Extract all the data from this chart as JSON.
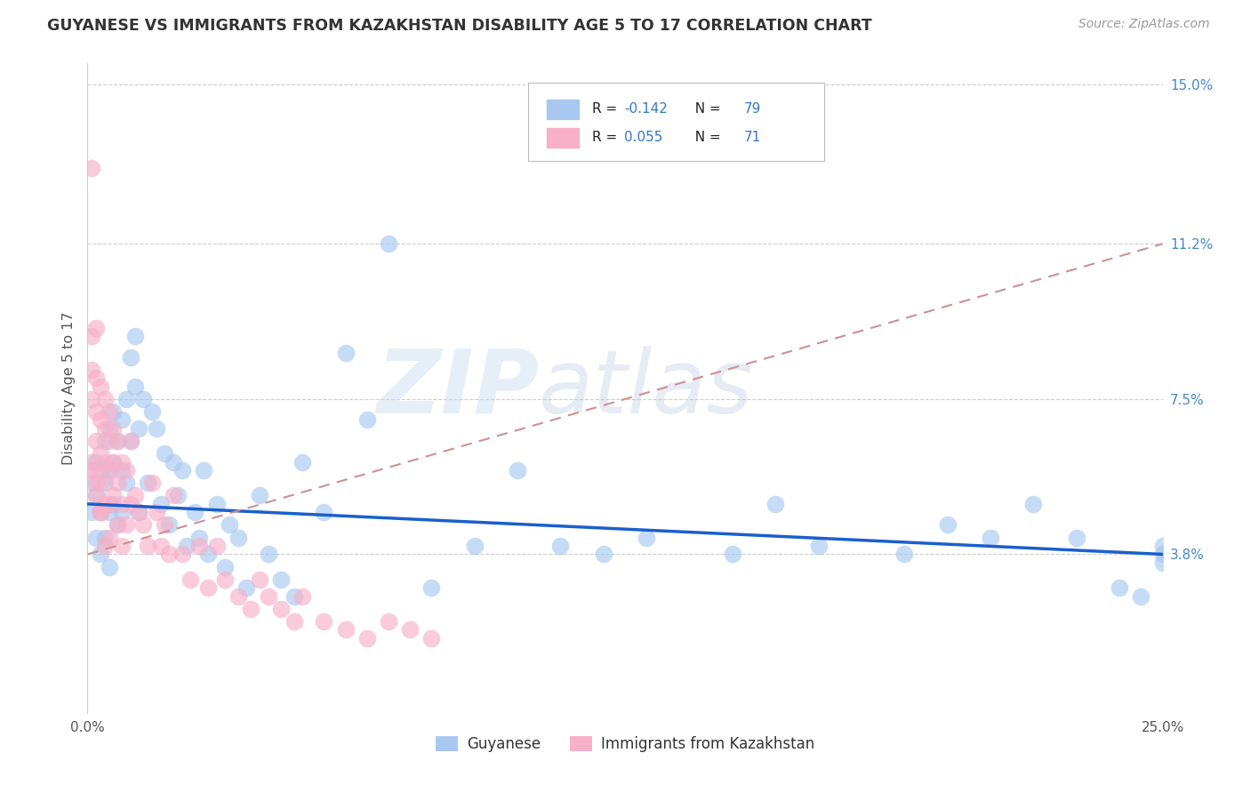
{
  "title": "GUYANESE VS IMMIGRANTS FROM KAZAKHSTAN DISABILITY AGE 5 TO 17 CORRELATION CHART",
  "source": "Source: ZipAtlas.com",
  "ylabel": "Disability Age 5 to 17",
  "xlim": [
    0.0,
    0.25
  ],
  "ylim": [
    0.0,
    0.155
  ],
  "xticks": [
    0.0,
    0.05,
    0.1,
    0.15,
    0.2,
    0.25
  ],
  "xticklabels": [
    "0.0%",
    "",
    "",
    "",
    "",
    "25.0%"
  ],
  "ytick_positions": [
    0.038,
    0.075,
    0.112,
    0.15
  ],
  "ytick_labels": [
    "3.8%",
    "7.5%",
    "11.2%",
    "15.0%"
  ],
  "R_blue": -0.142,
  "N_blue": 79,
  "R_pink": 0.055,
  "N_pink": 71,
  "blue_scatter_color": "#a8c8f0",
  "pink_scatter_color": "#f8b0c8",
  "line_blue_color": "#1a5fcc",
  "line_pink_color": "#d09090",
  "legend_label_blue": "Guyanese",
  "legend_label_pink": "Immigrants from Kazakhstan",
  "watermark_top": "ZIP",
  "watermark_bot": "atlas",
  "blue_line_x0": 0.0,
  "blue_line_y0": 0.05,
  "blue_line_x1": 0.25,
  "blue_line_y1": 0.038,
  "pink_line_x0": 0.0,
  "pink_line_y0": 0.038,
  "pink_line_x1": 0.25,
  "pink_line_y1": 0.112,
  "blue_x": [
    0.001,
    0.001,
    0.002,
    0.002,
    0.002,
    0.003,
    0.003,
    0.003,
    0.004,
    0.004,
    0.004,
    0.005,
    0.005,
    0.005,
    0.005,
    0.006,
    0.006,
    0.006,
    0.007,
    0.007,
    0.008,
    0.008,
    0.008,
    0.009,
    0.009,
    0.01,
    0.01,
    0.011,
    0.011,
    0.012,
    0.012,
    0.013,
    0.014,
    0.015,
    0.016,
    0.017,
    0.018,
    0.019,
    0.02,
    0.021,
    0.022,
    0.023,
    0.025,
    0.026,
    0.027,
    0.028,
    0.03,
    0.032,
    0.033,
    0.035,
    0.037,
    0.04,
    0.042,
    0.045,
    0.048,
    0.05,
    0.055,
    0.06,
    0.065,
    0.07,
    0.08,
    0.09,
    0.1,
    0.11,
    0.12,
    0.13,
    0.15,
    0.16,
    0.17,
    0.19,
    0.2,
    0.21,
    0.22,
    0.23,
    0.24,
    0.245,
    0.25,
    0.25,
    0.25
  ],
  "blue_y": [
    0.055,
    0.048,
    0.06,
    0.052,
    0.042,
    0.058,
    0.048,
    0.038,
    0.065,
    0.055,
    0.042,
    0.068,
    0.058,
    0.048,
    0.035,
    0.072,
    0.06,
    0.05,
    0.065,
    0.045,
    0.07,
    0.058,
    0.048,
    0.075,
    0.055,
    0.085,
    0.065,
    0.09,
    0.078,
    0.068,
    0.048,
    0.075,
    0.055,
    0.072,
    0.068,
    0.05,
    0.062,
    0.045,
    0.06,
    0.052,
    0.058,
    0.04,
    0.048,
    0.042,
    0.058,
    0.038,
    0.05,
    0.035,
    0.045,
    0.042,
    0.03,
    0.052,
    0.038,
    0.032,
    0.028,
    0.06,
    0.048,
    0.086,
    0.07,
    0.112,
    0.03,
    0.04,
    0.058,
    0.04,
    0.038,
    0.042,
    0.038,
    0.05,
    0.04,
    0.038,
    0.045,
    0.042,
    0.05,
    0.042,
    0.03,
    0.028,
    0.04,
    0.036,
    0.038
  ],
  "pink_x": [
    0.001,
    0.001,
    0.001,
    0.001,
    0.001,
    0.002,
    0.002,
    0.002,
    0.002,
    0.002,
    0.002,
    0.003,
    0.003,
    0.003,
    0.003,
    0.003,
    0.004,
    0.004,
    0.004,
    0.004,
    0.005,
    0.005,
    0.005,
    0.005,
    0.005,
    0.006,
    0.006,
    0.006,
    0.007,
    0.007,
    0.007,
    0.008,
    0.008,
    0.008,
    0.009,
    0.009,
    0.01,
    0.01,
    0.011,
    0.012,
    0.013,
    0.014,
    0.015,
    0.016,
    0.017,
    0.018,
    0.019,
    0.02,
    0.022,
    0.024,
    0.026,
    0.028,
    0.03,
    0.032,
    0.035,
    0.038,
    0.04,
    0.042,
    0.045,
    0.048,
    0.05,
    0.055,
    0.06,
    0.065,
    0.07,
    0.075,
    0.08,
    0.001,
    0.002,
    0.003,
    0.004
  ],
  "pink_y": [
    0.13,
    0.09,
    0.082,
    0.075,
    0.058,
    0.092,
    0.08,
    0.072,
    0.065,
    0.058,
    0.052,
    0.078,
    0.07,
    0.062,
    0.055,
    0.048,
    0.075,
    0.068,
    0.06,
    0.05,
    0.072,
    0.065,
    0.058,
    0.05,
    0.042,
    0.068,
    0.06,
    0.052,
    0.065,
    0.055,
    0.045,
    0.06,
    0.05,
    0.04,
    0.058,
    0.045,
    0.065,
    0.05,
    0.052,
    0.048,
    0.045,
    0.04,
    0.055,
    0.048,
    0.04,
    0.045,
    0.038,
    0.052,
    0.038,
    0.032,
    0.04,
    0.03,
    0.04,
    0.032,
    0.028,
    0.025,
    0.032,
    0.028,
    0.025,
    0.022,
    0.028,
    0.022,
    0.02,
    0.018,
    0.022,
    0.02,
    0.018,
    0.06,
    0.055,
    0.048,
    0.04
  ]
}
